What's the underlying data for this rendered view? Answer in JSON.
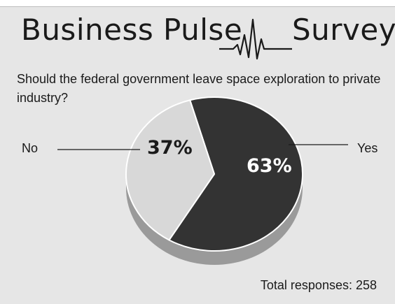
{
  "title_part1": "Business Pulse",
  "title_part2": "Survey",
  "question": "Should the federal government leave space exploration to private industry?",
  "total_responses": "Total responses: 258",
  "chart_data": {
    "type": "pie",
    "categories": [
      "Yes",
      "No"
    ],
    "values": [
      63,
      37
    ],
    "data_labels": [
      "63%",
      "37%"
    ],
    "colors": [
      "#333333",
      "#d8d8d8"
    ],
    "style": "3d-tilted"
  }
}
